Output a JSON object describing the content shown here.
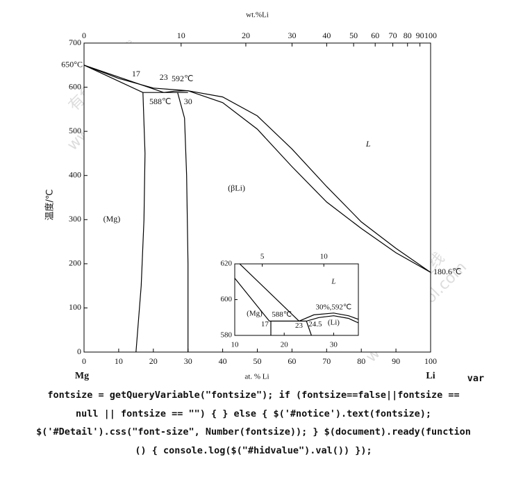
{
  "chart_data": [
    {
      "type": "phase-diagram",
      "top_axis_label": "wt.%Li",
      "x_label": "at. % Li",
      "y_label": "温度/℃",
      "left_corner": "Mg",
      "right_corner": "Li",
      "xlim": [
        0,
        100
      ],
      "ylim": [
        0,
        700
      ],
      "xticks": [
        0,
        10,
        20,
        30,
        40,
        50,
        60,
        70,
        80,
        90,
        100
      ],
      "yticks": [
        0,
        100,
        200,
        300,
        400,
        500,
        600,
        700
      ],
      "x2ticks": [
        0,
        10,
        20,
        30,
        40,
        50,
        60,
        70,
        80,
        90,
        100
      ],
      "lines": [
        {
          "x": [
            0,
            10,
            20,
            30,
            40,
            50,
            60,
            70,
            80,
            90,
            100
          ],
          "y": [
            650,
            620,
            598,
            592,
            565,
            505,
            420,
            340,
            280,
            225,
            180.6
          ]
        },
        {
          "x": [
            30,
            40,
            50,
            60,
            70,
            80,
            90,
            100
          ],
          "y": [
            592,
            578,
            535,
            460,
            375,
            295,
            235,
            180.6
          ]
        },
        {
          "x": [
            0,
            23
          ],
          "y": [
            650,
            588
          ]
        },
        {
          "x": [
            0,
            17
          ],
          "y": [
            650,
            588
          ]
        },
        {
          "x": [
            17,
            30
          ],
          "y": [
            588,
            588
          ]
        },
        {
          "x": [
            23,
            26,
            30
          ],
          "y": [
            588,
            591,
            592
          ]
        },
        {
          "x": [
            17,
            17.6,
            17.3,
            16.5,
            15
          ],
          "y": [
            588,
            450,
            300,
            150,
            0
          ]
        },
        {
          "x": [
            27,
            29,
            29.6,
            30,
            30
          ],
          "y": [
            588,
            530,
            400,
            200,
            0
          ]
        }
      ],
      "annotations": [
        "650°C",
        "17",
        "23",
        "588℃",
        "30",
        "592℃",
        "L",
        "(βLi)",
        "(Mg)",
        "180.6℃"
      ]
    },
    {
      "type": "phase-diagram-inset",
      "xlim": [
        10,
        35
      ],
      "ylim": [
        580,
        620
      ],
      "xticks": [
        10,
        20,
        30
      ],
      "yticks": [
        580,
        600,
        620
      ],
      "x2ticks": [
        5,
        10
      ],
      "lines": [
        {
          "x": [
            11,
            23
          ],
          "y": [
            620,
            588
          ]
        },
        {
          "x": [
            10,
            17
          ],
          "y": [
            612,
            588
          ]
        },
        {
          "x": [
            17,
            24.5
          ],
          "y": [
            588,
            588
          ]
        },
        {
          "x": [
            23,
            26,
            30,
            33,
            35
          ],
          "y": [
            588,
            591.5,
            592.5,
            591,
            589
          ]
        },
        {
          "x": [
            24.5,
            27,
            30,
            33,
            35
          ],
          "y": [
            588,
            590,
            591,
            589.5,
            587
          ]
        },
        {
          "x": [
            17.3,
            17.3
          ],
          "y": [
            588,
            580
          ]
        },
        {
          "x": [
            24.5,
            25.5
          ],
          "y": [
            588,
            580
          ]
        }
      ],
      "annotations": [
        "L",
        "(Mg)",
        "17",
        "588℃",
        "23",
        "24.5",
        "30%,592℃",
        "(Li)"
      ]
    }
  ],
  "watermarks": [
    "有色金属在线",
    "www.cnnmol.com",
    "有色金属在线",
    "www.cnnmol.com"
  ],
  "code_lines": [
    "var",
    "fontsize = getQueryVariable(\"fontsize\"); if (fontsize==false||fontsize ==",
    "null || fontsize == \"\") { } else { $('#notice').text(fontsize);",
    "$('#Detail').css(\"font-size\", Number(fontsize)); } $(document).ready(function",
    "() { console.log($(\"#hidvalue\").val()) });"
  ]
}
